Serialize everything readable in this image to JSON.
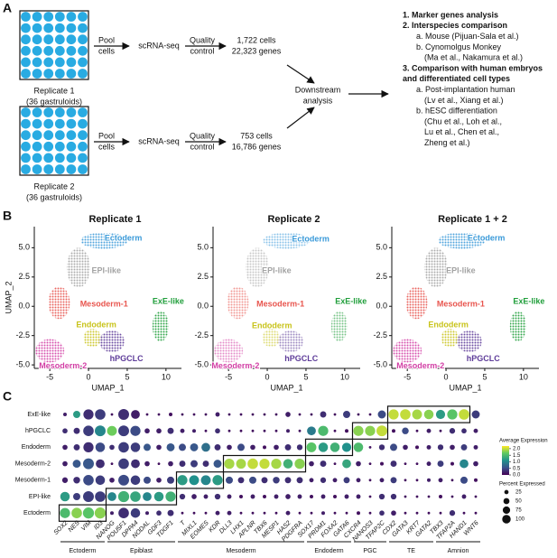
{
  "panel_a": {
    "label": "A",
    "replicates": [
      {
        "title": "Replicate 1",
        "subtitle": "(36 gastruloids)",
        "cells": "1,722 cells",
        "genes": "22,323 genes"
      },
      {
        "title": "Replicate 2",
        "subtitle": "(36 gastruloids)",
        "cells": "753 cells",
        "genes": "16,786 genes"
      }
    ],
    "pool": [
      "Pool",
      "cells"
    ],
    "seq": "scRNA-seq",
    "qc": [
      "Quality",
      "control"
    ],
    "downstream": [
      "Downstream",
      "analysis"
    ],
    "analyses": [
      {
        "heading": [
          "1. Marker genes analysis"
        ],
        "items": []
      },
      {
        "heading": [
          "2. Interspecies comparison"
        ],
        "items": [
          [
            "a. Mouse (Pijuan-Sala et al.)"
          ],
          [
            "b. Cynomolgus Monkey",
            "(Ma et al., Nakamura et al.)"
          ]
        ]
      },
      {
        "heading": [
          "3. Comparison with human embryos",
          "and differentiated cell types"
        ],
        "items": [
          [
            "a. Post-implantation human",
            "(Lv et al., Xiang et al.)"
          ],
          [
            "b. hESC differentiation",
            "(Chu et al., Loh et al.,",
            "Lu et al., Chen et al.,",
            "Zheng et al.)"
          ]
        ]
      }
    ]
  },
  "panel_b": {
    "label": "B",
    "x_label": "UMAP_1",
    "y_label": "UMAP_2",
    "xlim": [
      -7,
      12
    ],
    "ylim": [
      -5.3,
      6.8
    ],
    "xticks": [
      -5,
      0,
      5,
      10
    ],
    "yticks": [
      {
        "value": -5,
        "label": "-5.0"
      },
      {
        "value": -2.5,
        "label": "-2.5"
      },
      {
        "value": 0,
        "label": "0.0"
      },
      {
        "value": 2.5,
        "label": "2.5"
      },
      {
        "value": 5,
        "label": "5.0"
      }
    ],
    "cluster_types": [
      {
        "name": "Ectoderm",
        "color": "#3a9ad9"
      },
      {
        "name": "EPI-like",
        "color": "#a3a3a3"
      },
      {
        "name": "Mesoderm-1",
        "color": "#e8554e"
      },
      {
        "name": "Endoderm",
        "color": "#c8c31a"
      },
      {
        "name": "Mesoderm-2",
        "color": "#d23fa5"
      },
      {
        "name": "hPGCLC",
        "color": "#5e3c99"
      },
      {
        "name": "ExE-like",
        "color": "#1f9e3a"
      }
    ],
    "plots": [
      {
        "title": "Replicate 1",
        "clusters": [
          {
            "center": [
              2.0,
              5.6
            ],
            "label_at": [
              4.5,
              5.8
            ]
          },
          {
            "center": [
              -1.3,
              3.3
            ],
            "label_at": [
              2.3,
              3.0
            ]
          },
          {
            "center": [
              -3.8,
              0.3
            ],
            "label_at": [
              2.0,
              0.15
            ]
          },
          {
            "center": [
              0.5,
              -2.7
            ],
            "label_at": [
              1.0,
              -1.6
            ]
          },
          {
            "center": [
              -5.0,
              -3.8
            ],
            "label_at": [
              -3.3,
              -5.1
            ]
          },
          {
            "center": [
              3.0,
              -3.0
            ],
            "label_at": [
              4.9,
              -4.5
            ]
          },
          {
            "center": [
              9.3,
              -1.7
            ],
            "label_at": [
              10.3,
              0.4
            ]
          }
        ]
      },
      {
        "title": "Replicate 2",
        "clusters": [
          {
            "center": [
              2.5,
              5.6
            ],
            "label_at": [
              5.6,
              5.7
            ]
          },
          {
            "center": [
              -1.3,
              3.3
            ],
            "label_at": [
              1.2,
              3.0
            ]
          },
          {
            "center": [
              -3.8,
              0.3
            ],
            "label_at": [
              1.7,
              0.15
            ]
          },
          {
            "center": [
              0.5,
              -2.7
            ],
            "label_at": [
              0.6,
              -1.7
            ]
          },
          {
            "center": [
              -5.0,
              -3.8
            ],
            "label_at": [
              -4.1,
              -5.1
            ]
          },
          {
            "center": [
              3.0,
              -3.0
            ],
            "label_at": [
              4.4,
              -4.5
            ]
          },
          {
            "center": [
              9.3,
              -1.7
            ],
            "label_at": [
              10.8,
              0.4
            ]
          }
        ]
      },
      {
        "title": "Replicate 1 + 2",
        "clusters": [
          {
            "center": [
              2.0,
              5.6
            ],
            "label_at": [
              5.2,
              5.8
            ]
          },
          {
            "center": [
              -1.3,
              3.3
            ],
            "label_at": [
              1.9,
              3.0
            ]
          },
          {
            "center": [
              -3.8,
              0.3
            ],
            "label_at": [
              1.9,
              0.15
            ]
          },
          {
            "center": [
              0.5,
              -2.7
            ],
            "label_at": [
              0.3,
              -1.6
            ]
          },
          {
            "center": [
              -5.0,
              -3.8
            ],
            "label_at": [
              -3.3,
              -5.1
            ]
          },
          {
            "center": [
              3.0,
              -3.0
            ],
            "label_at": [
              4.8,
              -4.5
            ]
          },
          {
            "center": [
              9.3,
              -1.7
            ],
            "label_at": [
              10.7,
              0.4
            ]
          }
        ]
      }
    ]
  },
  "panel_c": {
    "label": "C",
    "rows": [
      "ExE-like",
      "hPGCLC",
      "Endoderm",
      "Mesoderm-2",
      "Mesoderm-1",
      "EPI-like",
      "Ectoderm"
    ],
    "gene_groups": [
      {
        "label": "Ectoderm",
        "genes": [
          "SOX2",
          "NES",
          "VIM",
          "ID3"
        ]
      },
      {
        "label": "Epiblast",
        "genes": [
          "NANOG",
          "POU5F1",
          "DPPA4",
          "NODAL",
          "GDF3",
          "TDGF1"
        ]
      },
      {
        "label": "Mesoderm",
        "genes": [
          "T",
          "MIXL1",
          "EOMES",
          "KDR",
          "DLL3",
          "LHX1",
          "APLNR",
          "TBX6",
          "MESP1",
          "HAS2",
          "PDGFRA"
        ]
      },
      {
        "label": "Endoderm",
        "genes": [
          "SOX17",
          "PRDM1",
          "FOXA2",
          "GATA6"
        ]
      },
      {
        "label": "PGC",
        "genes": [
          "CXCR4",
          "NANOS3",
          "TFAP2C"
        ]
      },
      {
        "label": "TE",
        "genes": [
          "CDX2",
          "GATA3",
          "KRT7",
          "GATA2"
        ]
      },
      {
        "label": "Amnion",
        "genes": [
          "TBX3",
          "TFAP2A",
          "HAND1",
          "WNT6"
        ]
      }
    ],
    "expression": [
      [
        0.2,
        1.2,
        0.3,
        0.4,
        0.1,
        0.3,
        0.2,
        0.1,
        0.1,
        0.1,
        0.1,
        0.1,
        0.1,
        0.2,
        0.1,
        0.1,
        0.1,
        0.1,
        0.1,
        0.2,
        0.1,
        0.1,
        0.3,
        0.1,
        0.4,
        0.1,
        0.1,
        0.5,
        2.0,
        2.0,
        1.9,
        1.8,
        1.2,
        1.6,
        2.0,
        0.4
      ],
      [
        0.3,
        0.3,
        0.4,
        1.0,
        1.7,
        0.4,
        0.5,
        0.2,
        0.2,
        0.3,
        0.2,
        0.2,
        0.1,
        0.3,
        0.1,
        0.1,
        0.1,
        0.1,
        0.1,
        0.2,
        0.1,
        0.9,
        1.5,
        0.1,
        0.1,
        1.8,
        1.8,
        2.0,
        0.1,
        0.5,
        0.1,
        0.2,
        0.1,
        0.3,
        0.3,
        0.2
      ],
      [
        0.2,
        0.3,
        0.3,
        0.5,
        0.3,
        0.4,
        0.4,
        0.6,
        0.2,
        0.6,
        0.5,
        0.6,
        0.8,
        0.3,
        0.2,
        0.5,
        0.2,
        0.1,
        0.2,
        0.3,
        0.3,
        1.6,
        1.2,
        1.4,
        1.1,
        1.5,
        0.1,
        0.3,
        0.5,
        0.2,
        0.1,
        0.2,
        0.3,
        0.2,
        0.4,
        0.2
      ],
      [
        0.2,
        0.6,
        0.6,
        0.3,
        0.1,
        0.4,
        0.3,
        0.2,
        0.1,
        0.2,
        0.3,
        0.4,
        0.3,
        0.6,
        1.9,
        1.9,
        2.0,
        2.0,
        1.9,
        1.4,
        1.8,
        0.2,
        0.3,
        0.1,
        1.3,
        0.2,
        0.1,
        0.1,
        0.3,
        0.1,
        0.1,
        0.2,
        0.4,
        0.1,
        1.0,
        0.2
      ],
      [
        0.2,
        0.3,
        0.5,
        0.4,
        0.2,
        0.5,
        0.4,
        0.5,
        0.2,
        0.4,
        1.2,
        1.1,
        1.0,
        1.2,
        0.5,
        0.3,
        0.5,
        0.3,
        0.4,
        0.3,
        0.3,
        0.2,
        0.3,
        0.2,
        0.4,
        0.2,
        0.1,
        0.2,
        0.4,
        0.1,
        0.1,
        0.2,
        0.2,
        0.1,
        0.5,
        0.1
      ],
      [
        1.2,
        0.4,
        0.4,
        0.4,
        1.0,
        1.4,
        1.3,
        1.0,
        1.2,
        1.4,
        0.3,
        0.2,
        0.2,
        0.3,
        0.2,
        0.1,
        0.2,
        0.1,
        0.2,
        0.2,
        0.2,
        0.1,
        0.2,
        0.1,
        0.2,
        0.2,
        0.1,
        0.3,
        0.3,
        0.1,
        0.1,
        0.1,
        0.1,
        0.1,
        0.2,
        0.1
      ],
      [
        1.5,
        1.8,
        1.6,
        1.8,
        0.2,
        0.3,
        0.4,
        0.2,
        0.3,
        0.3,
        0.1,
        0.1,
        0.1,
        0.2,
        0.2,
        0.1,
        0.1,
        0.1,
        0.1,
        0.2,
        0.1,
        0.1,
        0.2,
        0.1,
        0.1,
        0.1,
        0.1,
        0.3,
        0.2,
        0.1,
        0.1,
        0.1,
        0.1,
        0.3,
        0.1,
        0.1
      ]
    ],
    "percent": [
      [
        10,
        40,
        80,
        85,
        5,
        90,
        60,
        5,
        5,
        10,
        5,
        5,
        5,
        15,
        5,
        5,
        5,
        5,
        5,
        20,
        5,
        5,
        30,
        5,
        40,
        5,
        5,
        50,
        80,
        85,
        75,
        70,
        65,
        80,
        85,
        50
      ],
      [
        20,
        30,
        85,
        90,
        75,
        90,
        80,
        20,
        20,
        30,
        15,
        10,
        5,
        20,
        5,
        5,
        5,
        5,
        5,
        10,
        5,
        60,
        80,
        5,
        10,
        80,
        80,
        90,
        10,
        35,
        5,
        15,
        5,
        25,
        20,
        15
      ],
      [
        20,
        30,
        80,
        70,
        20,
        85,
        70,
        40,
        20,
        50,
        40,
        50,
        60,
        30,
        20,
        40,
        20,
        10,
        20,
        30,
        25,
        75,
        70,
        70,
        65,
        70,
        5,
        25,
        40,
        20,
        10,
        15,
        25,
        20,
        30,
        15
      ],
      [
        20,
        50,
        90,
        60,
        5,
        85,
        60,
        20,
        5,
        20,
        30,
        40,
        30,
        50,
        80,
        75,
        85,
        80,
        80,
        70,
        80,
        20,
        30,
        5,
        60,
        20,
        5,
        10,
        30,
        5,
        5,
        15,
        30,
        10,
        60,
        20
      ],
      [
        25,
        35,
        85,
        70,
        20,
        90,
        70,
        40,
        20,
        40,
        80,
        75,
        75,
        80,
        40,
        30,
        40,
        30,
        35,
        30,
        30,
        15,
        25,
        15,
        30,
        15,
        5,
        15,
        30,
        5,
        5,
        10,
        15,
        5,
        40,
        10
      ],
      [
        70,
        40,
        90,
        85,
        60,
        95,
        85,
        60,
        70,
        80,
        25,
        20,
        15,
        25,
        15,
        10,
        15,
        10,
        15,
        20,
        15,
        10,
        15,
        10,
        15,
        15,
        5,
        25,
        25,
        5,
        5,
        5,
        10,
        5,
        15,
        5
      ],
      [
        80,
        85,
        95,
        95,
        10,
        85,
        70,
        10,
        20,
        30,
        5,
        5,
        5,
        15,
        15,
        5,
        5,
        5,
        5,
        15,
        5,
        5,
        10,
        5,
        5,
        10,
        5,
        20,
        20,
        5,
        5,
        5,
        5,
        25,
        5,
        5
      ]
    ],
    "color_legend": {
      "title": "Average Expression",
      "lim": [
        0,
        2.2
      ],
      "ticks": [
        {
          "value": 0,
          "label": "0.0"
        },
        {
          "value": 0.5,
          "label": "0.5"
        },
        {
          "value": 1,
          "label": "1.0"
        },
        {
          "value": 1.5,
          "label": "1.5"
        },
        {
          "value": 2,
          "label": "2.0"
        }
      ]
    },
    "size_legend": {
      "title": "Percent Expressed",
      "values": [
        25,
        50,
        75,
        100
      ]
    }
  }
}
